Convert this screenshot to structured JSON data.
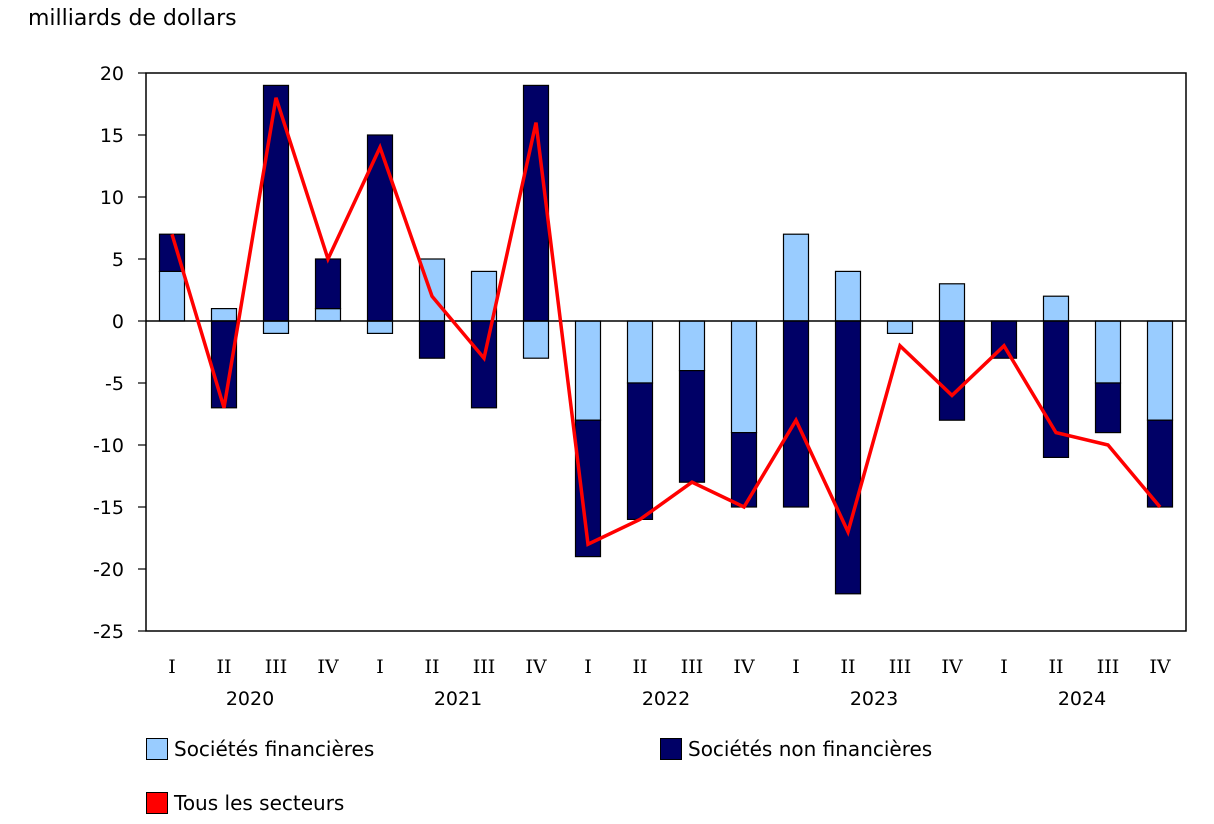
{
  "chart_data": {
    "type": "bar",
    "ylabel": "milliards de dollars",
    "ylim": [
      -25,
      20
    ],
    "yticks": [
      "20",
      "15",
      "10",
      "5",
      "0",
      "-5",
      "-10",
      "-15",
      "-20",
      "-25"
    ],
    "yticks_values": [
      20,
      15,
      10,
      5,
      0,
      -5,
      -10,
      -15,
      -20,
      -25
    ],
    "categories": [
      "I",
      "II",
      "III",
      "IV",
      "I",
      "II",
      "III",
      "IV",
      "I",
      "II",
      "III",
      "IV",
      "I",
      "II",
      "III",
      "IV",
      "I",
      "II",
      "III",
      "IV"
    ],
    "years": [
      "2020",
      "2021",
      "2022",
      "2023",
      "2024"
    ],
    "series": [
      {
        "name": "Sociétés financières",
        "color": "#99ccff",
        "values": [
          4,
          1,
          -1,
          1,
          -1,
          5,
          4,
          -3,
          -8,
          -5,
          -4,
          -9,
          7,
          4,
          -1,
          3,
          0,
          2,
          -5,
          -8
        ]
      },
      {
        "name": "Sociétés non financières",
        "color": "#000066",
        "values": [
          3,
          -7,
          19,
          4,
          15,
          -3,
          -7,
          19,
          -11,
          -11,
          -9,
          -6,
          -15,
          -22,
          0,
          -8,
          -3,
          -11,
          -4,
          -7
        ]
      },
      {
        "name": "Tous les secteurs",
        "color": "#ff0000",
        "values": [
          7,
          -7,
          18,
          5,
          14,
          2,
          -3,
          16,
          -18,
          -16,
          -13,
          -15,
          -8,
          -17,
          -2,
          -6,
          -2,
          -9,
          -10,
          -15
        ]
      }
    ]
  }
}
